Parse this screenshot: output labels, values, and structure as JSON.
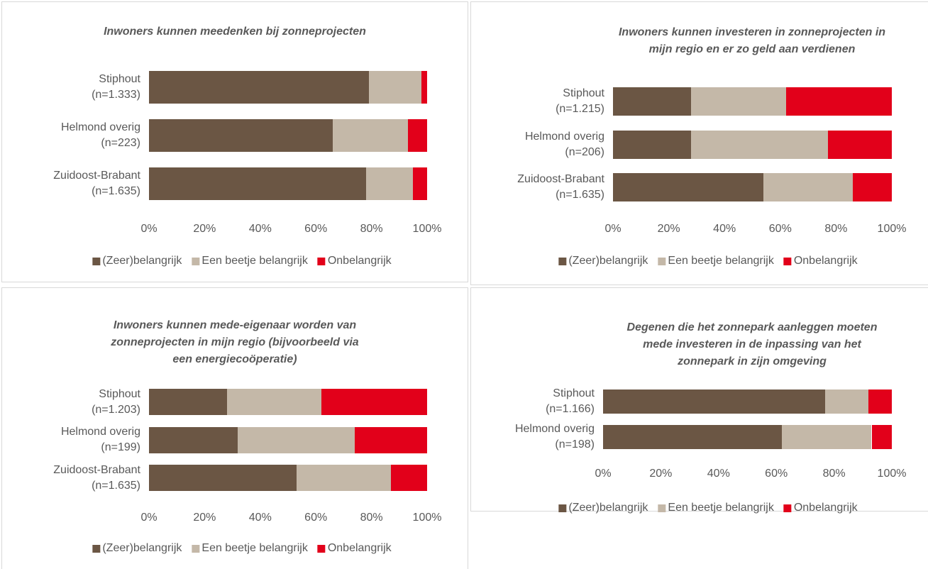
{
  "chart_data": [
    {
      "type": "stacked_barh",
      "title": "Inwoners kunnen meedenken bij zonneprojecten",
      "categories": [
        "Stiphout\n(n=1.333)",
        "Helmond overig\n(n=223)",
        "Zuidoost-Brabant\n(n=1.635)"
      ],
      "series": [
        {
          "name": "(Zeer)belangrijk",
          "color": "#6b5644",
          "values": [
            79,
            66,
            78
          ]
        },
        {
          "name": "Een beetje belangrijk",
          "color": "#c4b8a8",
          "values": [
            19,
            27,
            17
          ]
        },
        {
          "name": "Onbelangrijk",
          "color": "#e2001a",
          "values": [
            2,
            7,
            5
          ]
        }
      ],
      "xlim": [
        0,
        100
      ],
      "xticks": [
        {
          "value": 0,
          "label": "0%"
        },
        {
          "value": 20,
          "label": "20%"
        },
        {
          "value": 40,
          "label": "40%"
        },
        {
          "value": 60,
          "label": "60%"
        },
        {
          "value": 80,
          "label": "80%"
        },
        {
          "value": 100,
          "label": "100%"
        }
      ],
      "legend": "bottom"
    },
    {
      "type": "stacked_barh",
      "title": "Inwoners kunnen investeren in zonneprojecten in\nmijn regio en er zo geld aan verdienen",
      "categories": [
        "Stiphout\n(n=1.215)",
        "Helmond overig\n(n=206)",
        "Zuidoost-Brabant\n(n=1.635)"
      ],
      "series": [
        {
          "name": "(Zeer)belangrijk",
          "color": "#6b5644",
          "values": [
            28,
            28,
            54
          ]
        },
        {
          "name": "Een beetje belangrijk",
          "color": "#c4b8a8",
          "values": [
            34,
            49,
            32
          ]
        },
        {
          "name": "Onbelangrijk",
          "color": "#e2001a",
          "values": [
            38,
            23,
            14
          ]
        }
      ],
      "xlim": [
        0,
        100
      ],
      "xticks": [
        {
          "value": 0,
          "label": "0%"
        },
        {
          "value": 20,
          "label": "20%"
        },
        {
          "value": 40,
          "label": "40%"
        },
        {
          "value": 60,
          "label": "60%"
        },
        {
          "value": 80,
          "label": "80%"
        },
        {
          "value": 100,
          "label": "100%"
        }
      ],
      "legend": "bottom"
    },
    {
      "type": "stacked_barh",
      "title": "Inwoners kunnen mede-eigenaar worden van\nzonneprojecten in mijn regio (bijvoorbeeld via\neen energiecoöperatie)",
      "categories": [
        "Stiphout\n(n=1.203)",
        "Helmond overig\n(n=199)",
        "Zuidoost-Brabant\n(n=1.635)"
      ],
      "series": [
        {
          "name": "(Zeer)belangrijk",
          "color": "#6b5644",
          "values": [
            28,
            32,
            53
          ]
        },
        {
          "name": "Een beetje belangrijk",
          "color": "#c4b8a8",
          "values": [
            34,
            42,
            34
          ]
        },
        {
          "name": "Onbelangrijk",
          "color": "#e2001a",
          "values": [
            38,
            26,
            13
          ]
        }
      ],
      "xlim": [
        0,
        100
      ],
      "xticks": [
        {
          "value": 0,
          "label": "0%"
        },
        {
          "value": 20,
          "label": "20%"
        },
        {
          "value": 40,
          "label": "40%"
        },
        {
          "value": 60,
          "label": "60%"
        },
        {
          "value": 80,
          "label": "80%"
        },
        {
          "value": 100,
          "label": "100%"
        }
      ],
      "legend": "bottom"
    },
    {
      "type": "stacked_barh",
      "title": "Degenen die het zonnepark aanleggen moeten\nmede investeren in de inpassing van het\nzonnepark in zijn omgeving",
      "categories": [
        "Stiphout\n(n=1.166)",
        "Helmond overig\n(n=198)"
      ],
      "series": [
        {
          "name": "(Zeer)belangrijk",
          "color": "#6b5644",
          "values": [
            77,
            62
          ]
        },
        {
          "name": "Een beetje belangrijk",
          "color": "#c4b8a8",
          "values": [
            15,
            31
          ]
        },
        {
          "name": "Onbelangrijk",
          "color": "#e2001a",
          "values": [
            8,
            7
          ]
        }
      ],
      "xlim": [
        0,
        100
      ],
      "xticks": [
        {
          "value": 0,
          "label": "0%"
        },
        {
          "value": 20,
          "label": "20%"
        },
        {
          "value": 40,
          "label": "40%"
        },
        {
          "value": 60,
          "label": "60%"
        },
        {
          "value": 80,
          "label": "80%"
        },
        {
          "value": 100,
          "label": "100%"
        }
      ],
      "legend": "bottom"
    }
  ]
}
